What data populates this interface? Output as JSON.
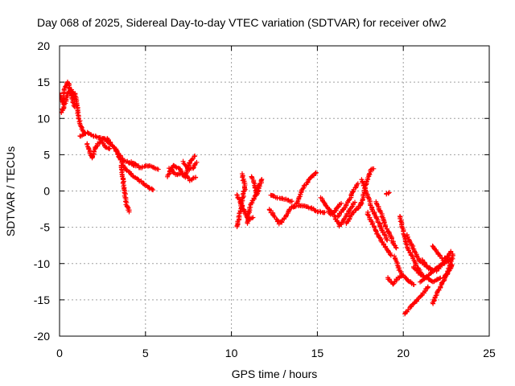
{
  "chart_data": {
    "type": "scatter",
    "title": "Day 068 of 2025, Sidereal Day-to-day VTEC variation (SDTVAR) for receiver ofw2",
    "xlabel": "GPS time / hours",
    "ylabel": "SDTVAR / TECUs",
    "xlim": [
      0,
      25
    ],
    "ylim": [
      -20,
      20
    ],
    "xticks": [
      "0",
      "5",
      "10",
      "15",
      "20",
      "25"
    ],
    "yticks": [
      "20",
      "15",
      "10",
      "5",
      "0",
      "-5",
      "-10",
      "-15",
      "-20"
    ],
    "xtick_values": [
      0,
      5,
      10,
      15,
      20,
      25
    ],
    "ytick_values": [
      20,
      15,
      10,
      5,
      0,
      -5,
      -10,
      -15,
      -20
    ],
    "grid": true,
    "marker": "plus",
    "series_color": "#ff0000",
    "tracks": [
      [
        [
          0.0,
          13.5
        ],
        [
          0.2,
          12.0
        ],
        [
          0.3,
          14.2
        ],
        [
          0.5,
          15.0
        ],
        [
          0.7,
          13.0
        ],
        [
          0.9,
          11.5
        ]
      ],
      [
        [
          0.1,
          10.8
        ],
        [
          0.3,
          11.8
        ],
        [
          0.5,
          13.5
        ],
        [
          0.7,
          14.0
        ],
        [
          0.9,
          12.5
        ]
      ],
      [
        [
          0.9,
          13.5
        ],
        [
          1.0,
          12.0
        ],
        [
          1.1,
          10.2
        ],
        [
          1.3,
          8.5
        ],
        [
          1.5,
          7.8
        ]
      ],
      [
        [
          1.2,
          7.5
        ],
        [
          1.6,
          8.0
        ],
        [
          2.0,
          7.6
        ],
        [
          2.4,
          7.3
        ],
        [
          2.8,
          7.2
        ],
        [
          3.0,
          6.5
        ]
      ],
      [
        [
          1.6,
          6.5
        ],
        [
          1.9,
          4.5
        ],
        [
          2.1,
          6.0
        ],
        [
          2.4,
          7.0
        ],
        [
          2.7,
          6.0
        ],
        [
          3.0,
          5.8
        ]
      ],
      [
        [
          2.7,
          7.0
        ],
        [
          3.1,
          6.2
        ],
        [
          3.4,
          5.2
        ],
        [
          3.7,
          4.3
        ],
        [
          4.1,
          3.8
        ],
        [
          4.5,
          3.4
        ]
      ],
      [
        [
          3.3,
          5.8
        ],
        [
          3.5,
          4.5
        ],
        [
          3.8,
          3.2
        ],
        [
          4.2,
          2.2
        ],
        [
          4.6,
          1.5
        ],
        [
          5.0,
          0.8
        ],
        [
          5.5,
          0.0
        ]
      ],
      [
        [
          3.6,
          3.5
        ],
        [
          3.7,
          1.5
        ],
        [
          3.8,
          -0.5
        ],
        [
          3.9,
          -2.0
        ],
        [
          4.1,
          -3.0
        ]
      ],
      [
        [
          4.2,
          4.0
        ],
        [
          4.7,
          3.2
        ],
        [
          5.2,
          3.5
        ],
        [
          5.8,
          3.0
        ]
      ],
      [
        [
          6.3,
          2.0
        ],
        [
          6.6,
          3.5
        ],
        [
          7.0,
          3.0
        ],
        [
          7.3,
          1.8
        ],
        [
          7.6,
          4.0
        ],
        [
          7.9,
          5.0
        ]
      ],
      [
        [
          6.4,
          3.2
        ],
        [
          6.8,
          2.2
        ],
        [
          7.2,
          2.5
        ],
        [
          7.6,
          1.5
        ],
        [
          8.0,
          2.0
        ]
      ],
      [
        [
          7.2,
          4.0
        ],
        [
          7.5,
          3.0
        ],
        [
          7.8,
          3.2
        ],
        [
          8.0,
          4.0
        ]
      ],
      [
        [
          10.3,
          -5.0
        ],
        [
          10.5,
          -3.0
        ],
        [
          10.6,
          -1.5
        ],
        [
          10.8,
          0.5
        ],
        [
          10.6,
          2.5
        ]
      ],
      [
        [
          10.3,
          -0.5
        ],
        [
          10.7,
          -2.5
        ],
        [
          11.0,
          -4.0
        ],
        [
          11.3,
          -3.5
        ]
      ],
      [
        [
          10.9,
          -4.5
        ],
        [
          11.1,
          -2.0
        ],
        [
          11.4,
          -0.5
        ],
        [
          11.6,
          1.0
        ]
      ],
      [
        [
          11.2,
          2.0
        ],
        [
          11.5,
          -0.5
        ],
        [
          11.8,
          1.8
        ]
      ],
      [
        [
          12.2,
          -2.5
        ],
        [
          12.5,
          -3.5
        ],
        [
          12.8,
          -4.5
        ],
        [
          13.1,
          -3.8
        ],
        [
          13.4,
          -2.5
        ],
        [
          13.7,
          -2.0
        ]
      ],
      [
        [
          12.3,
          -0.5
        ],
        [
          12.7,
          -1.0
        ],
        [
          13.2,
          -1.2
        ],
        [
          13.6,
          -1.5
        ]
      ],
      [
        [
          13.8,
          -1.8
        ],
        [
          14.0,
          -0.5
        ],
        [
          14.2,
          0.5
        ],
        [
          14.5,
          1.5
        ],
        [
          14.8,
          2.3
        ],
        [
          15.0,
          2.6
        ]
      ],
      [
        [
          13.5,
          -2.2
        ],
        [
          14.0,
          -2.0
        ],
        [
          14.6,
          -2.3
        ],
        [
          15.0,
          -2.8
        ],
        [
          15.5,
          -3.0
        ]
      ],
      [
        [
          15.2,
          -1.0
        ],
        [
          15.5,
          -2.0
        ],
        [
          15.8,
          -3.3
        ],
        [
          16.1,
          -2.5
        ],
        [
          16.4,
          -1.5
        ]
      ],
      [
        [
          15.7,
          -2.5
        ],
        [
          16.0,
          -3.5
        ],
        [
          16.3,
          -4.8
        ],
        [
          16.6,
          -3.8
        ],
        [
          16.9,
          -2.5
        ],
        [
          17.2,
          -1.5
        ]
      ],
      [
        [
          16.2,
          -3.5
        ],
        [
          16.6,
          -2.2
        ],
        [
          16.9,
          -1.0
        ],
        [
          17.2,
          0.5
        ],
        [
          17.4,
          1.2
        ]
      ],
      [
        [
          16.7,
          -4.5
        ],
        [
          17.0,
          -3.2
        ],
        [
          17.3,
          -2.5
        ],
        [
          17.6,
          -1.6
        ]
      ],
      [
        [
          17.5,
          -2.0
        ],
        [
          17.7,
          -0.5
        ],
        [
          17.9,
          1.5
        ],
        [
          18.1,
          2.8
        ],
        [
          18.3,
          3.2
        ]
      ],
      [
        [
          17.6,
          1.5
        ],
        [
          17.9,
          -0.5
        ],
        [
          18.2,
          -2.5
        ],
        [
          18.5,
          -4.0
        ],
        [
          18.8,
          -5.5
        ],
        [
          19.1,
          -7.0
        ]
      ],
      [
        [
          17.9,
          -3.0
        ],
        [
          18.2,
          -4.5
        ],
        [
          18.5,
          -6.0
        ],
        [
          18.9,
          -7.5
        ],
        [
          19.3,
          -9.0
        ]
      ],
      [
        [
          18.4,
          -1.5
        ],
        [
          18.7,
          -3.0
        ],
        [
          19.0,
          -5.0
        ],
        [
          19.3,
          -6.5
        ],
        [
          19.6,
          -8.0
        ]
      ],
      [
        [
          19.1,
          -12.0
        ],
        [
          19.4,
          -12.8
        ],
        [
          19.7,
          -12.0
        ],
        [
          20.0,
          -11.5
        ]
      ],
      [
        [
          19.5,
          -9.0
        ],
        [
          19.8,
          -11.0
        ],
        [
          20.1,
          -12.0
        ],
        [
          20.4,
          -12.5
        ],
        [
          20.7,
          -13.0
        ]
      ],
      [
        [
          19.8,
          -3.5
        ],
        [
          20.0,
          -5.5
        ],
        [
          20.2,
          -7.5
        ],
        [
          20.5,
          -9.0
        ],
        [
          20.8,
          -10.5
        ],
        [
          21.1,
          -11.5
        ]
      ],
      [
        [
          20.2,
          -6.0
        ],
        [
          20.5,
          -7.5
        ],
        [
          20.8,
          -9.0
        ],
        [
          21.0,
          -9.8
        ],
        [
          21.3,
          -10.2
        ],
        [
          21.6,
          -10.8
        ]
      ],
      [
        [
          20.1,
          -17.0
        ],
        [
          20.4,
          -16.0
        ],
        [
          20.8,
          -15.0
        ],
        [
          21.2,
          -14.0
        ],
        [
          21.5,
          -13.0
        ]
      ],
      [
        [
          20.6,
          -10.5
        ],
        [
          21.0,
          -11.5
        ],
        [
          21.4,
          -12.0
        ],
        [
          21.8,
          -12.5
        ],
        [
          22.2,
          -11.8
        ]
      ],
      [
        [
          21.1,
          -9.5
        ],
        [
          21.5,
          -10.8
        ],
        [
          21.9,
          -11.0
        ],
        [
          22.3,
          -10.0
        ],
        [
          22.7,
          -9.0
        ]
      ],
      [
        [
          21.7,
          -15.5
        ],
        [
          22.0,
          -14.0
        ],
        [
          22.3,
          -12.5
        ],
        [
          22.6,
          -11.2
        ],
        [
          22.9,
          -10.0
        ]
      ],
      [
        [
          21.7,
          -7.5
        ],
        [
          22.0,
          -8.5
        ],
        [
          22.3,
          -9.5
        ],
        [
          22.6,
          -9.0
        ],
        [
          22.8,
          -8.2
        ]
      ],
      [
        [
          22.4,
          -12.0
        ],
        [
          22.6,
          -11.0
        ],
        [
          22.8,
          -9.5
        ],
        [
          22.9,
          -8.5
        ]
      ],
      [
        [
          21.0,
          -12.5
        ],
        [
          21.5,
          -11.5
        ],
        [
          22.0,
          -10.5
        ],
        [
          22.5,
          -9.8
        ],
        [
          22.9,
          -9.2
        ]
      ],
      [
        [
          19.0,
          -0.5
        ],
        [
          19.2,
          0.0
        ]
      ]
    ]
  }
}
